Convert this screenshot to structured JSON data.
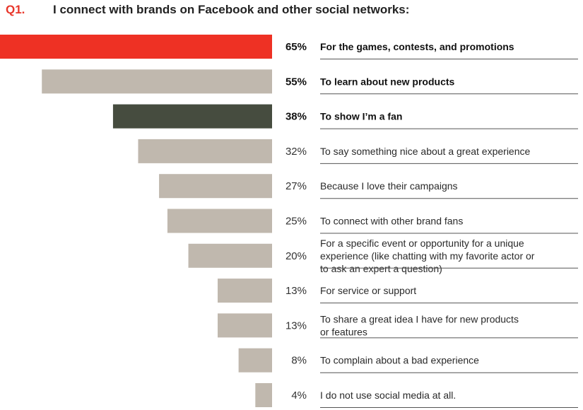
{
  "question": {
    "number": "Q1.",
    "title": "I connect with brands on Facebook and other social networks:"
  },
  "colors": {
    "highlight_red": "#ee3124",
    "highlight_dark": "#464c3f",
    "default_bar": "#c0b8ae",
    "rule": "#555555"
  },
  "chart_data": {
    "type": "bar",
    "orientation": "horizontal",
    "unit": "%",
    "xlim": [
      0,
      65
    ],
    "grid": false,
    "bars": [
      {
        "value": 65,
        "label": "65%",
        "category": [
          "For the games, contests, and promotions"
        ],
        "emphasis": true,
        "color": "#ee3124"
      },
      {
        "value": 55,
        "label": "55%",
        "category": [
          "To learn about new products"
        ],
        "emphasis": true,
        "color": "#c0b8ae"
      },
      {
        "value": 38,
        "label": "38%",
        "category": [
          "To show I’m a fan"
        ],
        "emphasis": true,
        "color": "#464c3f"
      },
      {
        "value": 32,
        "label": "32%",
        "category": [
          "To say something nice about a great experience"
        ],
        "emphasis": false,
        "color": "#c0b8ae"
      },
      {
        "value": 27,
        "label": "27%",
        "category": [
          "Because I love their campaigns"
        ],
        "emphasis": false,
        "color": "#c0b8ae"
      },
      {
        "value": 25,
        "label": "25%",
        "category": [
          "To connect with other brand fans"
        ],
        "emphasis": false,
        "color": "#c0b8ae"
      },
      {
        "value": 20,
        "label": "20%",
        "category": [
          "For a specific event or opportunity for a unique",
          "experience (like chatting with my favorite actor or",
          "to ask an expert a question)"
        ],
        "emphasis": false,
        "color": "#c0b8ae"
      },
      {
        "value": 13,
        "label": "13%",
        "category": [
          "For service or support"
        ],
        "emphasis": false,
        "color": "#c0b8ae"
      },
      {
        "value": 13,
        "label": "13%",
        "category": [
          "To share a great idea I have for new products",
          "or features"
        ],
        "emphasis": false,
        "color": "#c0b8ae"
      },
      {
        "value": 8,
        "label": "8%",
        "category": [
          "To complain about a bad experience"
        ],
        "emphasis": false,
        "color": "#c0b8ae"
      },
      {
        "value": 4,
        "label": "4%",
        "category": [
          "I do not use social media at all."
        ],
        "emphasis": false,
        "color": "#c0b8ae"
      }
    ]
  }
}
